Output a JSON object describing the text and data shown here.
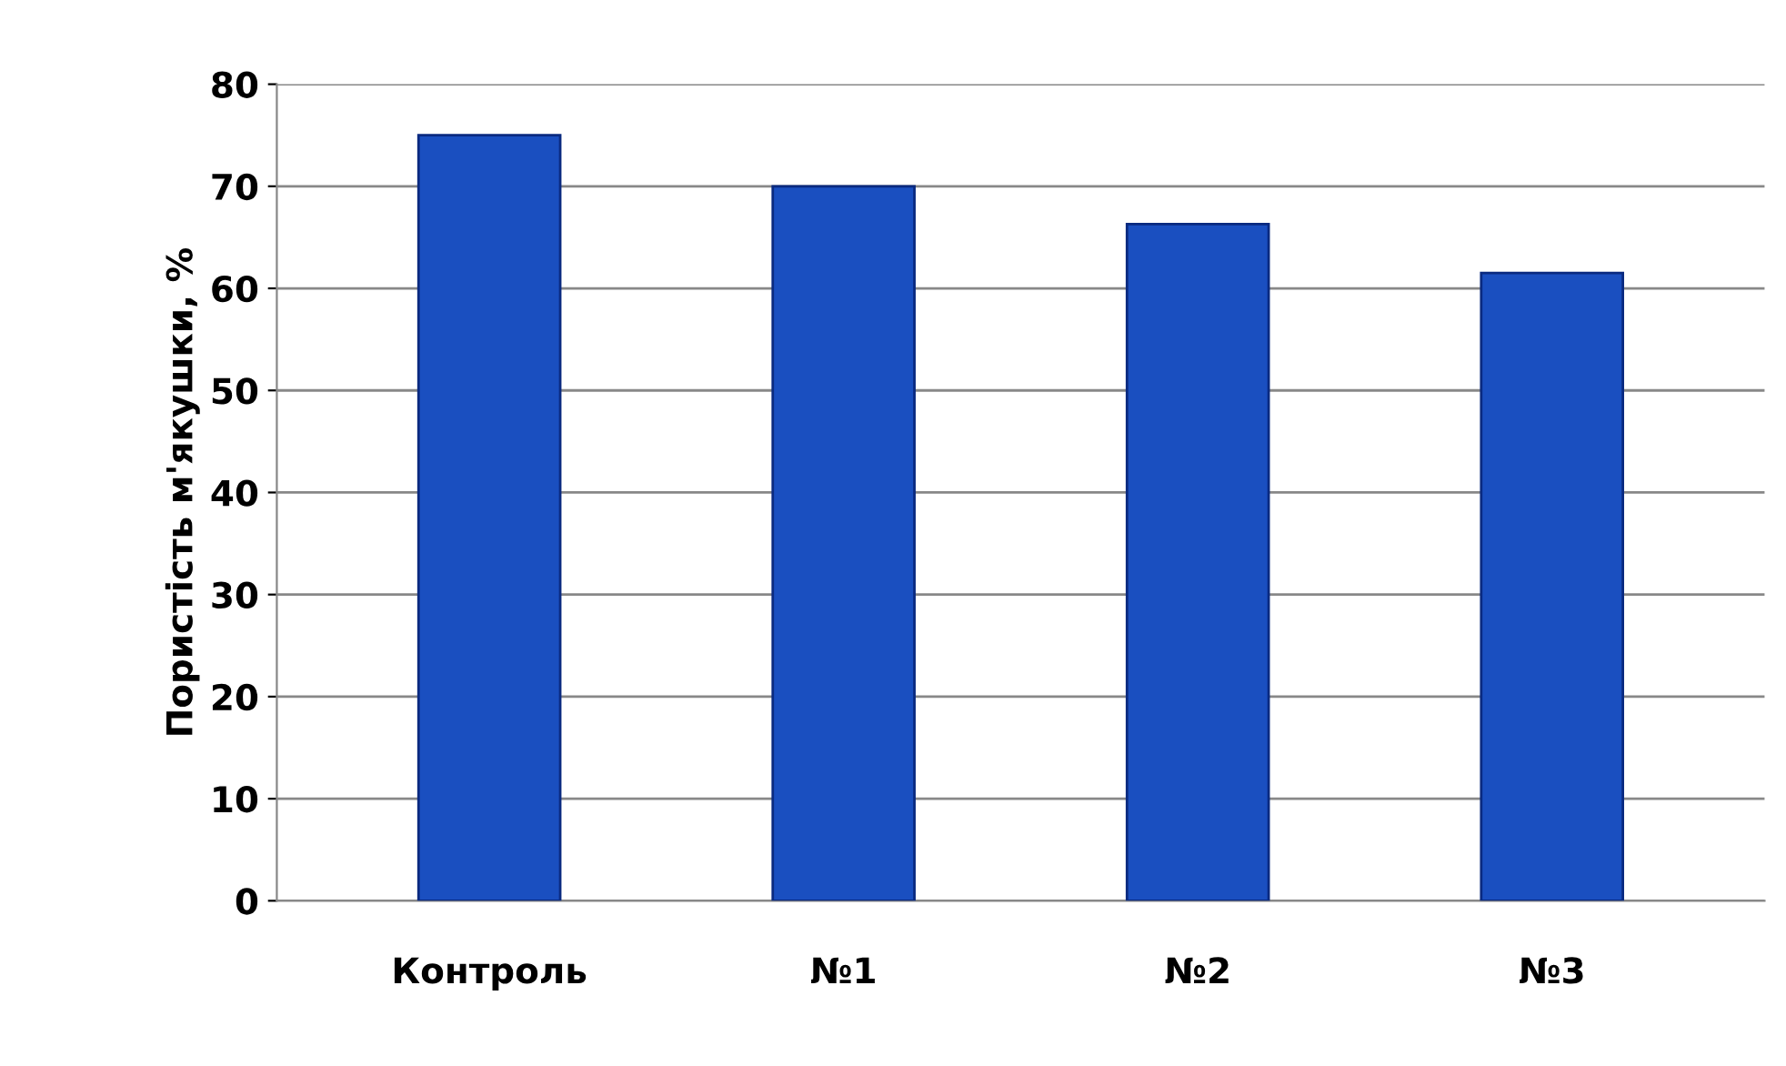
{
  "chart_data": {
    "type": "bar",
    "ylabel": "Пористість м'якушки, %",
    "categories": [
      "Контроль",
      "№1",
      "№2",
      "№3"
    ],
    "values": [
      75,
      70,
      66.3,
      61.5
    ],
    "color": "#1a4fc0",
    "ylim": [
      0,
      80
    ],
    "yticks": [
      0,
      10,
      20,
      30,
      40,
      50,
      60,
      70,
      80
    ],
    "grid": "y"
  }
}
